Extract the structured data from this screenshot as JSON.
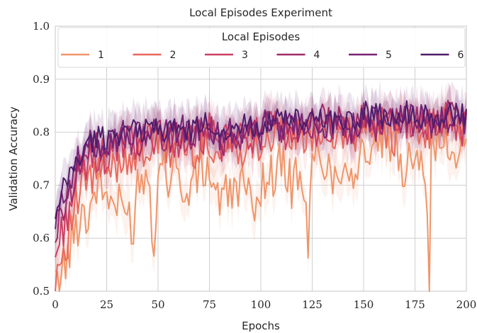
{
  "chart_data": {
    "type": "line",
    "title": "Local Episodes Experiment",
    "xlabel": "Epochs",
    "ylabel": "Validation Accuracy",
    "xlim": [
      0,
      200
    ],
    "ylim": [
      0.5,
      1.0
    ],
    "xticks": [
      0,
      25,
      50,
      75,
      100,
      125,
      150,
      175,
      200
    ],
    "yticks": [
      0.5,
      0.6,
      0.7,
      0.8,
      0.9,
      1.0
    ],
    "xtick_labels": [
      "0",
      "25",
      "50",
      "75",
      "100",
      "125",
      "150",
      "175",
      "200"
    ],
    "ytick_labels": [
      "0.5",
      "0.6",
      "0.7",
      "0.8",
      "0.9",
      "1.0"
    ],
    "grid": true,
    "legend": {
      "title": "Local Episodes",
      "placement": "top",
      "columns": 6
    },
    "series": [
      {
        "name": "1",
        "color": "#f0956a",
        "x": [
          0,
          2,
          4,
          6,
          8,
          10,
          12,
          14,
          16,
          18,
          20,
          25,
          30,
          35,
          38,
          40,
          45,
          48,
          50,
          55,
          60,
          62,
          65,
          70,
          75,
          80,
          85,
          90,
          95,
          100,
          105,
          110,
          115,
          120,
          123,
          125,
          130,
          135,
          140,
          145,
          150,
          155,
          160,
          165,
          170,
          175,
          180,
          182,
          183,
          185,
          190,
          195,
          200
        ],
        "y": [
          0.5,
          0.53,
          0.55,
          0.56,
          0.6,
          0.62,
          0.64,
          0.66,
          0.63,
          0.68,
          0.7,
          0.68,
          0.66,
          0.65,
          0.62,
          0.71,
          0.73,
          0.59,
          0.74,
          0.72,
          0.76,
          0.64,
          0.7,
          0.72,
          0.73,
          0.67,
          0.68,
          0.71,
          0.66,
          0.7,
          0.72,
          0.74,
          0.7,
          0.73,
          0.58,
          0.74,
          0.76,
          0.71,
          0.75,
          0.72,
          0.77,
          0.75,
          0.79,
          0.76,
          0.73,
          0.78,
          0.74,
          0.5,
          0.76,
          0.78,
          0.77,
          0.76,
          0.8
        ]
      },
      {
        "name": "2",
        "color": "#e8685c",
        "x": [
          0,
          2,
          4,
          6,
          8,
          10,
          12,
          14,
          16,
          18,
          20,
          25,
          30,
          35,
          40,
          45,
          50,
          55,
          60,
          65,
          70,
          75,
          80,
          85,
          90,
          95,
          100,
          105,
          110,
          115,
          120,
          125,
          130,
          135,
          140,
          145,
          150,
          155,
          160,
          165,
          170,
          175,
          180,
          185,
          190,
          195,
          200
        ],
        "y": [
          0.53,
          0.56,
          0.58,
          0.6,
          0.64,
          0.66,
          0.68,
          0.7,
          0.72,
          0.7,
          0.73,
          0.72,
          0.74,
          0.76,
          0.75,
          0.77,
          0.78,
          0.76,
          0.78,
          0.77,
          0.77,
          0.79,
          0.75,
          0.78,
          0.77,
          0.79,
          0.78,
          0.8,
          0.79,
          0.8,
          0.78,
          0.8,
          0.81,
          0.79,
          0.8,
          0.78,
          0.82,
          0.8,
          0.81,
          0.79,
          0.82,
          0.8,
          0.81,
          0.8,
          0.82,
          0.8,
          0.8
        ]
      },
      {
        "name": "3",
        "color": "#cc3f62",
        "x": [
          0,
          2,
          4,
          6,
          8,
          10,
          12,
          14,
          16,
          18,
          20,
          25,
          30,
          35,
          40,
          45,
          50,
          55,
          60,
          65,
          70,
          75,
          80,
          85,
          90,
          95,
          100,
          105,
          110,
          115,
          120,
          125,
          130,
          135,
          140,
          145,
          150,
          155,
          160,
          165,
          170,
          175,
          180,
          185,
          190,
          195,
          200
        ],
        "y": [
          0.56,
          0.6,
          0.62,
          0.65,
          0.68,
          0.7,
          0.72,
          0.73,
          0.74,
          0.75,
          0.76,
          0.75,
          0.77,
          0.78,
          0.77,
          0.79,
          0.8,
          0.78,
          0.79,
          0.78,
          0.79,
          0.8,
          0.77,
          0.79,
          0.78,
          0.8,
          0.79,
          0.81,
          0.8,
          0.81,
          0.79,
          0.81,
          0.81,
          0.8,
          0.81,
          0.79,
          0.82,
          0.81,
          0.82,
          0.8,
          0.82,
          0.81,
          0.82,
          0.81,
          0.83,
          0.81,
          0.81
        ]
      },
      {
        "name": "4",
        "color": "#a02a68",
        "x": [
          0,
          2,
          4,
          6,
          8,
          10,
          12,
          14,
          16,
          18,
          20,
          25,
          30,
          35,
          40,
          45,
          50,
          55,
          60,
          65,
          70,
          75,
          80,
          85,
          90,
          95,
          100,
          105,
          110,
          115,
          120,
          125,
          130,
          135,
          140,
          145,
          150,
          155,
          160,
          165,
          170,
          175,
          180,
          185,
          190,
          195,
          200
        ],
        "y": [
          0.6,
          0.63,
          0.66,
          0.68,
          0.7,
          0.72,
          0.74,
          0.75,
          0.76,
          0.77,
          0.78,
          0.77,
          0.78,
          0.79,
          0.78,
          0.8,
          0.8,
          0.79,
          0.8,
          0.79,
          0.8,
          0.81,
          0.78,
          0.8,
          0.79,
          0.81,
          0.8,
          0.82,
          0.8,
          0.82,
          0.8,
          0.82,
          0.82,
          0.81,
          0.82,
          0.8,
          0.83,
          0.81,
          0.82,
          0.81,
          0.83,
          0.82,
          0.82,
          0.81,
          0.83,
          0.82,
          0.82
        ]
      },
      {
        "name": "5",
        "color": "#782373",
        "x": [
          0,
          2,
          4,
          6,
          8,
          10,
          12,
          14,
          16,
          18,
          20,
          25,
          30,
          35,
          40,
          45,
          50,
          55,
          60,
          65,
          70,
          75,
          80,
          85,
          90,
          95,
          100,
          105,
          110,
          115,
          120,
          125,
          130,
          135,
          140,
          145,
          150,
          155,
          160,
          165,
          170,
          175,
          180,
          185,
          190,
          195,
          200
        ],
        "y": [
          0.62,
          0.65,
          0.68,
          0.7,
          0.72,
          0.74,
          0.75,
          0.76,
          0.77,
          0.78,
          0.78,
          0.78,
          0.79,
          0.8,
          0.79,
          0.8,
          0.81,
          0.8,
          0.81,
          0.8,
          0.8,
          0.81,
          0.79,
          0.81,
          0.8,
          0.81,
          0.81,
          0.82,
          0.81,
          0.82,
          0.81,
          0.83,
          0.82,
          0.81,
          0.82,
          0.81,
          0.83,
          0.82,
          0.83,
          0.82,
          0.83,
          0.82,
          0.83,
          0.82,
          0.83,
          0.82,
          0.82
        ]
      },
      {
        "name": "6",
        "color": "#4f1c6a",
        "x": [
          0,
          2,
          4,
          6,
          8,
          10,
          12,
          14,
          16,
          18,
          20,
          25,
          30,
          35,
          40,
          45,
          50,
          55,
          60,
          65,
          70,
          75,
          80,
          85,
          90,
          95,
          100,
          105,
          110,
          115,
          120,
          125,
          130,
          135,
          140,
          145,
          150,
          155,
          160,
          165,
          170,
          175,
          180,
          185,
          190,
          195,
          200
        ],
        "y": [
          0.63,
          0.66,
          0.69,
          0.71,
          0.73,
          0.74,
          0.75,
          0.77,
          0.78,
          0.78,
          0.79,
          0.79,
          0.8,
          0.8,
          0.8,
          0.81,
          0.81,
          0.8,
          0.81,
          0.8,
          0.81,
          0.82,
          0.8,
          0.81,
          0.81,
          0.82,
          0.81,
          0.82,
          0.82,
          0.83,
          0.81,
          0.83,
          0.83,
          0.82,
          0.83,
          0.82,
          0.84,
          0.83,
          0.83,
          0.82,
          0.84,
          0.83,
          0.83,
          0.82,
          0.84,
          0.83,
          0.83
        ]
      }
    ]
  }
}
